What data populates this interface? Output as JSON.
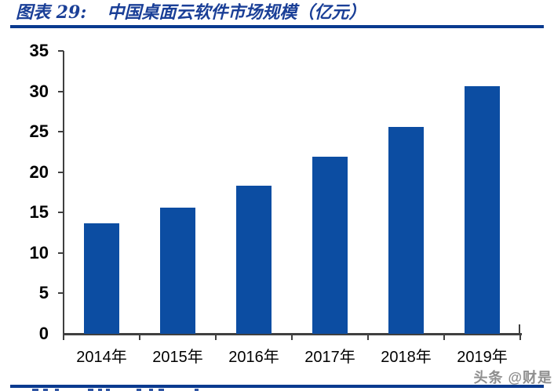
{
  "title": {
    "label": "图表 29:",
    "text": "中国桌面云软件市场规模（亿元）"
  },
  "watermark": "头条 @财是",
  "colors": {
    "bar": "#0C4DA2",
    "rule": "#0A3A8F",
    "title": "#1A3F97",
    "axis": "#404040",
    "watermark": "#8F8F8F"
  },
  "chart_data": {
    "type": "bar",
    "title": "中国桌面云软件市场规模（亿元）",
    "categories": [
      "2014年",
      "2015年",
      "2016年",
      "2017年",
      "2018年",
      "2019年"
    ],
    "values": [
      13.7,
      15.6,
      18.3,
      21.9,
      25.6,
      30.6
    ],
    "xlabel": "",
    "ylabel": "",
    "ylim": [
      0,
      35
    ],
    "yticks": [
      0,
      5,
      10,
      15,
      20,
      25,
      30,
      35
    ],
    "grid": false,
    "legend": false,
    "bar_color": "#0C4DA2"
  }
}
